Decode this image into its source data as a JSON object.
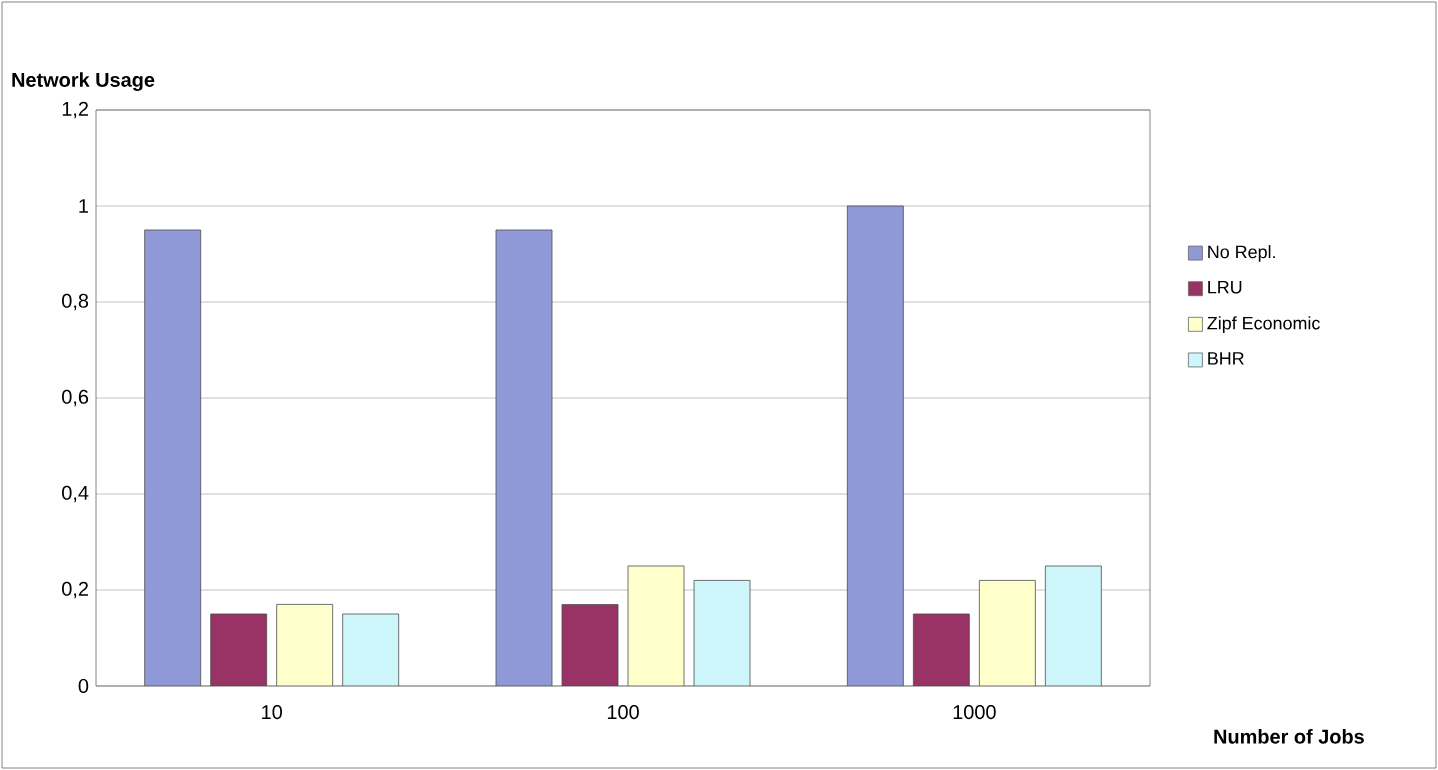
{
  "chart_data": {
    "type": "bar",
    "ylabel": "Network Usage",
    "xlabel": "Number of Jobs",
    "categories": [
      "10",
      "100",
      "1000"
    ],
    "series": [
      {
        "name": "No Repl.",
        "color": "#9099d8",
        "values": [
          0.95,
          0.95,
          1.0
        ]
      },
      {
        "name": "LRU",
        "color": "#993366",
        "values": [
          0.15,
          0.17,
          0.15
        ]
      },
      {
        "name": "Zipf Economic",
        "color": "#ffffcc",
        "values": [
          0.17,
          0.25,
          0.22
        ]
      },
      {
        "name": "BHR",
        "color": "#ccf6fa",
        "values": [
          0.15,
          0.22,
          0.25
        ]
      }
    ],
    "ylim": [
      0,
      1.2
    ],
    "yticks": [
      0,
      {
        "value": 0.2,
        "label": "0,2"
      },
      {
        "value": 0.4,
        "label": "0,4"
      },
      {
        "value": 0.6,
        "label": "0,6"
      },
      {
        "value": 0.8,
        "label": "0,8"
      },
      1,
      {
        "value": 1.2,
        "label": "1,2"
      }
    ],
    "grid": "y",
    "legend": "right"
  }
}
